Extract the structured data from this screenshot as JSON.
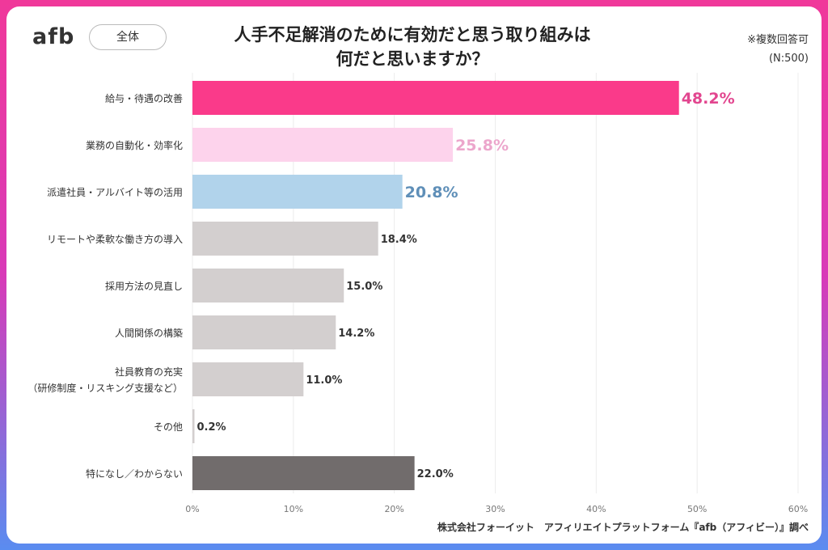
{
  "header": {
    "logo": "afb",
    "scope_button": "全体",
    "title_line1": "人手不足解消のために有効だと思う取り組みは",
    "title_line2": "何だと思いますか？",
    "note_line1": "※複数回答可",
    "note_line2": "(N:500)"
  },
  "footer": {
    "source": "株式会社フォーイット　アフィリエイトプラットフォーム『afb（アフィビー）』調べ"
  },
  "colors": {
    "highlight1": "#fa3a8a",
    "highlight2": "#fdd3ec",
    "highlight3": "#b1d3eb",
    "gray": "#d3cfcf",
    "dark": "#716c6c",
    "label1": "#e2468f",
    "label2": "#eca6cc",
    "label3": "#5f8fb8"
  },
  "chart_data": {
    "type": "bar",
    "orientation": "horizontal",
    "title": "人手不足解消のために有効だと思う取り組みは何だと思いますか？",
    "categories": [
      "給与・待遇の改善",
      "業務の自動化・効率化",
      "派遣社員・アルバイト等の活用",
      "リモートや柔軟な働き方の導入",
      "採用方法の見直し",
      "人間関係の構築",
      "社員教育の充実\n（研修制度・リスキング支援など）",
      "その他",
      "特になし／わからない"
    ],
    "values": [
      48.2,
      25.8,
      20.8,
      18.4,
      15.0,
      14.2,
      11.0,
      0.2,
      22.0
    ],
    "data_labels": [
      "48.2%",
      "25.8%",
      "20.8%",
      "18.4%",
      "15.0%",
      "14.2%",
      "11.0%",
      "0.2%",
      "22.0%"
    ],
    "xlim": [
      0,
      60
    ],
    "x_ticks": [
      "0%",
      "10%",
      "20%",
      "30%",
      "40%",
      "50%",
      "60%"
    ],
    "grid": true,
    "unit": "%"
  }
}
